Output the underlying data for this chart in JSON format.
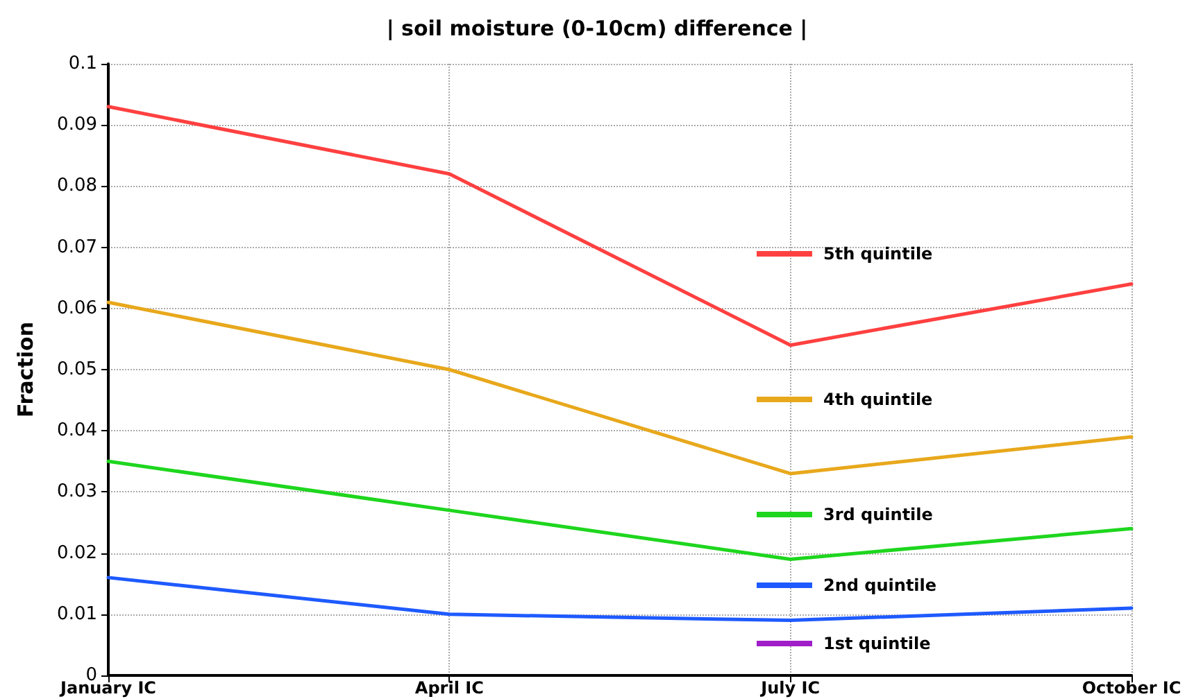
{
  "chart_data": {
    "type": "line",
    "title": "| soil moisture (0-10cm) difference |",
    "ylabel": "Fraction",
    "categories": [
      "January IC",
      "April IC",
      "July IC",
      "October IC"
    ],
    "series": [
      {
        "name": "5th quintile",
        "color": "#ff4040",
        "values": [
          0.093,
          0.082,
          0.054,
          0.064
        ]
      },
      {
        "name": "4th quintile",
        "color": "#e8a81c",
        "values": [
          0.061,
          0.05,
          0.033,
          0.039
        ]
      },
      {
        "name": "3rd quintile",
        "color": "#1ed61e",
        "values": [
          0.035,
          0.027,
          0.019,
          0.024
        ]
      },
      {
        "name": "2nd quintile",
        "color": "#1e5aff",
        "values": [
          0.016,
          0.01,
          0.009,
          0.011
        ]
      },
      {
        "name": "1st quintile",
        "color": "#a01ec8",
        "values": [
          null,
          null,
          null,
          null
        ]
      }
    ],
    "ylim": [
      0,
      0.1
    ],
    "yticks": [
      0,
      0.01,
      0.02,
      0.03,
      0.04,
      0.05,
      0.06,
      0.07,
      0.08,
      0.09,
      0.1
    ],
    "grid": true,
    "legend": "right",
    "marker": "none",
    "line_style": "solid"
  }
}
